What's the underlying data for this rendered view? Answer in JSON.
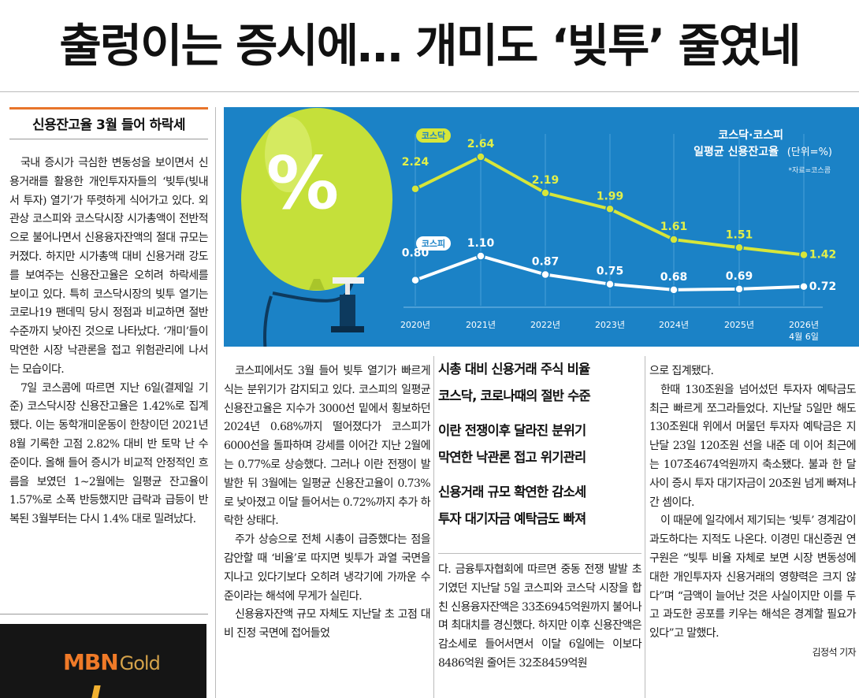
{
  "headline": "출렁이는 증시에… 개미도 ‘빚투’ 줄였네",
  "sidebar": {
    "title": "신용잔고율 3월 들어 하락세",
    "paragraphs": [
      "국내 증시가 극심한 변동성을 보이면서 신용거래를 활용한 개인투자자들의 ‘빚투(빚내서 투자) 열기’가 뚜렷하게 식어가고 있다. 외관상 코스피와 코스닥시장 시가총액이 전반적으로 불어나면서 신용융자잔액의 절대 규모는 커졌다. 하지만 시가총액 대비 신용거래 강도를 보여주는 신용잔고율은 오히려 하락세를 보이고 있다. 특히 코스닥시장의 빚투 열기는 코로나19 팬데믹 당시 정점과 비교하면 절반 수준까지 낮아진 것으로 나타났다. ‘개미’들이 막연한 시장 낙관론을 접고 위험관리에 나서는 모습이다.",
      "7일 코스콤에 따르면 지난 6일(결제일 기준) 코스닥시장 신용잔고율은 1.42%로 집계됐다. 이는 동학개미운동이 한창이던 2021년 8월 기록한 고점 2.82% 대비 반 토막 난 수준이다. 올해 들어 증시가 비교적 안정적인 흐름을 보였던 1~2월에는 일평균 잔고율이 1.57%로 소폭 반등했지만 급락과 급등이 반복된 3월부터는 다시 1.4% 대로 밀려났다."
    ]
  },
  "col2": {
    "paragraphs": [
      "코스피에서도 3월 들어 빚투 열기가 빠르게 식는 분위기가 감지되고 있다. 코스피의 일평균 신용잔고율은 지수가 3000선 밑에서 횡보하던 2024년 0.68%까지 떨어졌다가 코스피가 6000선을 돌파하며 강세를 이어간 지난 2월에는 0.77%로 상승했다. 그러나 이란 전쟁이 발발한 뒤 3월에는 일평균 신용잔고율이 0.73%로 낮아졌고 이달 들어서는 0.72%까지 추가 하락한 상태다.",
      "주가 상승으로 전체 시총이 급증했다는 점을 감안할 때 ‘비율’로 따지면 빚투가 과열 국면을 지나고 있다기보다 오히려 냉각기에 가까운 수준이라는 해석에 무게가 실린다.",
      "신용융자잔액 규모 자체도 지난달 초 고점 대비 진정 국면에 접어들었"
    ]
  },
  "subheads": [
    [
      "시총 대비 신용거래 주식 비율",
      "코스닥, 코로나때의 절반 수준"
    ],
    [
      "이란 전쟁이후 달라진 분위기",
      "막연한 낙관론 접고 위기관리"
    ],
    [
      "신용거래 규모 확연한 감소세",
      "투자 대기자금 예탁금도 빠져"
    ]
  ],
  "col3": {
    "paragraphs": [
      "다. 금융투자협회에 따르면 중동 전쟁 발발 초기였던 지난달 5일 코스피와 코스닥 시장을 합친 신용융자잔액은 33조6945억원까지 불어나며 최대치를 경신했다. 하지만 이후 신용잔액은 감소세로 들어서면서 이달 6일에는 이보다 8486억원 줄어든 32조8459억원"
    ]
  },
  "col4": {
    "paragraphs": [
      "으로 집계됐다.",
      "한때 130조원을 넘어섰던 투자자 예탁금도 최근 빠르게 쪼그라들었다. 지난달 5일만 해도 130조원대 위에서 머물던 투자자 예탁금은 지난달 23일 120조원 선을 내준 데 이어 최근에는 107조4674억원까지 축소됐다. 불과 한 달 사이 증시 투자 대기자금이 20조원 넘게 빠져나간 셈이다.",
      "이 때문에 일각에서 제기되는 ‘빚투’ 경계감이 과도하다는 지적도 나온다. 이경민 대신증권 연구원은 “빚투 비율 자체로 보면 시장 변동성에 대한 개인투자자 신용거래의 영향력은 크지 않다”며 “금액이 늘어난 것은 사실이지만 이를 두고 과도한 공포를 키우는 해석은 경계할 필요가 있다”고 말했다."
    ],
    "byline": "김정석 기자"
  },
  "chart_data": {
    "type": "line",
    "title": "코스닥·코스피\n일평균 신용잔고율 (단위=%)",
    "title_line1": "코스닥·코스피",
    "title_line2": "일평균 신용잔고율",
    "unit": "(단위=%)",
    "source": "*자료=코스콤",
    "balloon_label": "%",
    "categories": [
      "2020년",
      "2021년",
      "2022년",
      "2023년",
      "2024년",
      "2025년",
      "2026년"
    ],
    "last_category_note": "4월 6일",
    "series": [
      {
        "name": "코스닥",
        "values": [
          2.24,
          2.64,
          2.19,
          1.99,
          1.61,
          1.51,
          1.42
        ],
        "color": "#d7e63a"
      },
      {
        "name": "코스피",
        "values": [
          0.8,
          1.1,
          0.87,
          0.75,
          0.68,
          0.69,
          0.72
        ],
        "color": "#ffffff"
      }
    ],
    "value_labels": {
      "코스닥": [
        "2.24",
        "2.64",
        "2.19",
        "1.99",
        "1.61",
        "1.51",
        "1.42"
      ],
      "코스피": [
        "0.80",
        "1.10",
        "0.87",
        "0.75",
        "0.68",
        "0.69",
        "0.72"
      ]
    },
    "grid": true,
    "background": "#1b82c6"
  },
  "ad": {
    "brand": "MBN",
    "brand_suffix": "Gold"
  }
}
